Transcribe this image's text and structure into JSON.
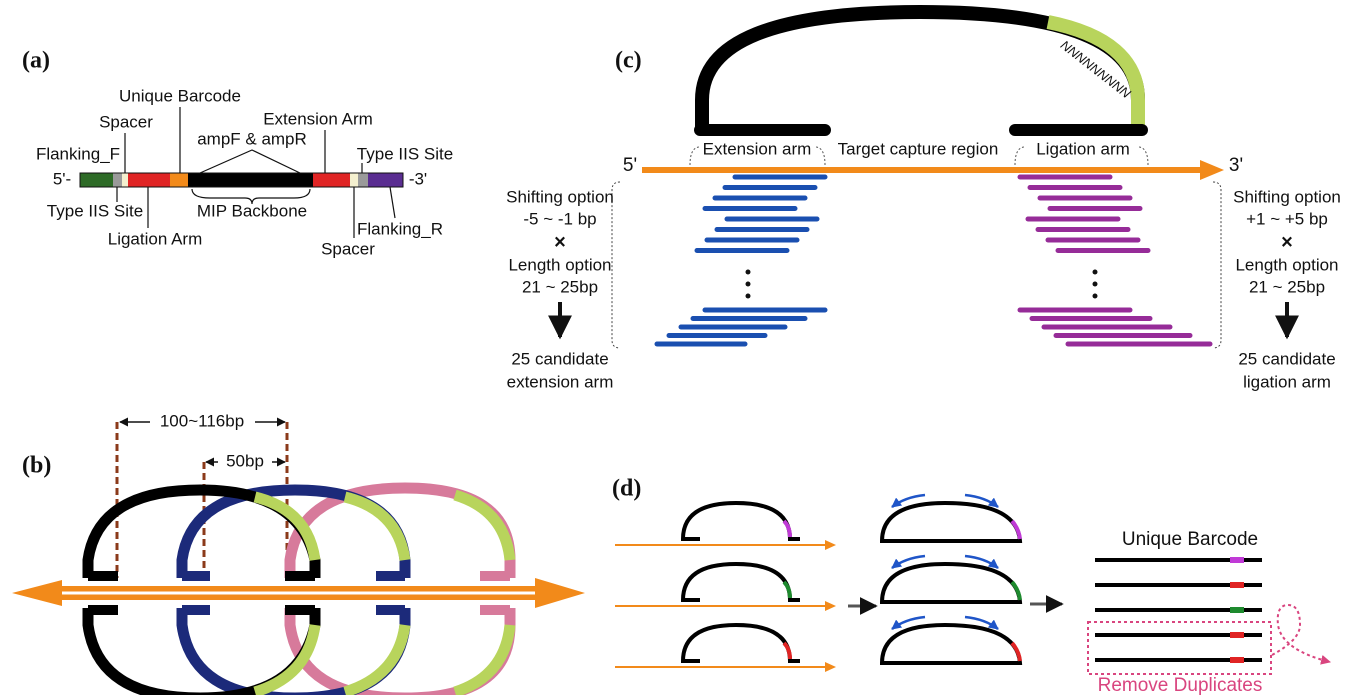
{
  "panel_a": {
    "label": "(a)",
    "five_prime": "5'-",
    "three_prime": "-3'",
    "unique_barcode": "Unique Barcode",
    "spacer_top": "Spacer",
    "extension_arm": "Extension Arm",
    "flanking_f": "Flanking_F",
    "ampf_ampr": "ampF & ampR",
    "type_iis_top": "Type IIS Site",
    "type_iis_bottom": "Type IIS Site",
    "mip_backbone": "MIP Backbone",
    "flanking_r": "Flanking_R",
    "ligation_arm": "Ligation Arm",
    "spacer_bottom": "Spacer"
  },
  "panel_b": {
    "label": "(b)",
    "distance_long": "100~116bp",
    "distance_short": "50bp"
  },
  "panel_c": {
    "label": "(c)",
    "random_bases": "NNNNNNNNN",
    "extension_arm": "Extension arm",
    "target_region": "Target capture region",
    "ligation_arm": "Ligation arm",
    "five_prime": "5'",
    "three_prime": "3'",
    "left": [
      "Shifting option",
      "-5 ~ -1 bp",
      "×",
      "Length option",
      "21 ~ 25bp",
      "25 candidate",
      "extension arm"
    ],
    "right": [
      "Shifting option",
      "+1 ~ +5 bp",
      "×",
      "Length option",
      "21 ~ 25bp",
      "25 candidate",
      "ligation arm"
    ]
  },
  "panel_d": {
    "label": "(d)",
    "unique_barcode": "Unique Barcode",
    "remove_duplicates": "Remove Duplicates"
  }
}
